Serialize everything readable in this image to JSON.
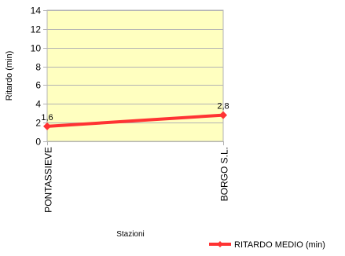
{
  "chart_data": {
    "type": "line",
    "title": "",
    "xlabel": "Stazioni",
    "ylabel": "Ritardo (min)",
    "categories": [
      "PONTASSIEVE",
      "BORGO S.L."
    ],
    "series": [
      {
        "name": "RITARDO MEDIO (min)",
        "values": [
          1.6,
          2.8
        ],
        "data_labels": [
          "1,6",
          "2,8"
        ],
        "color": "#ff3333"
      }
    ],
    "ylim": [
      0,
      14
    ],
    "y_ticks": [
      0,
      2,
      4,
      6,
      8,
      10,
      12,
      14
    ],
    "grid": true,
    "legend_position": "bottom-right",
    "plot_background": "#ffffc0",
    "grid_color": "#b3b3b3"
  }
}
